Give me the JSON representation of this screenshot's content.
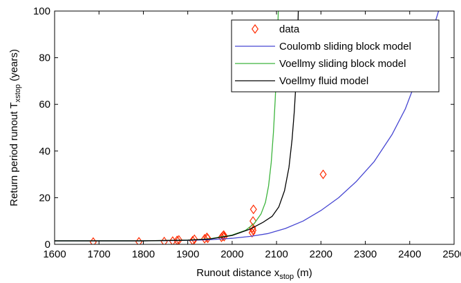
{
  "chart_data": {
    "type": "line",
    "xlabel": {
      "main": "Runout distance x",
      "sub": "stop",
      "suffix": " (m)"
    },
    "ylabel": {
      "main": "Return period runout T",
      "sub": "xstop",
      "suffix": " (years)"
    },
    "xlim": [
      1600,
      2500
    ],
    "ylim": [
      0,
      100
    ],
    "xticks": [
      1600,
      1700,
      1800,
      1900,
      2000,
      2100,
      2200,
      2300,
      2400,
      2500
    ],
    "yticks": [
      0,
      20,
      40,
      60,
      80,
      100
    ],
    "grid": false,
    "legend_position": "top-right",
    "series": [
      {
        "name": "data",
        "style": "marker",
        "marker": "diamond",
        "color": "#ff2a00",
        "points": [
          [
            1687,
            1.0
          ],
          [
            1790,
            1.1
          ],
          [
            1847,
            1.2
          ],
          [
            1866,
            1.4
          ],
          [
            1876,
            1.7
          ],
          [
            1880,
            1.9
          ],
          [
            1911,
            1.6
          ],
          [
            1915,
            2.2
          ],
          [
            1938,
            2.4
          ],
          [
            1943,
            3.0
          ],
          [
            1945,
            2.6
          ],
          [
            1976,
            3.0
          ],
          [
            1979,
            3.6
          ],
          [
            1981,
            4.0
          ],
          [
            1982,
            3.3
          ],
          [
            2045,
            5.0
          ],
          [
            2046,
            7.0
          ],
          [
            2047,
            6.0
          ],
          [
            2047,
            10.0
          ],
          [
            2048,
            15.0
          ],
          [
            2205,
            30.0
          ]
        ]
      },
      {
        "name": "Coulomb sliding block model",
        "style": "line",
        "color": "#4646d2",
        "points": [
          [
            1600,
            1.5
          ],
          [
            1800,
            1.5
          ],
          [
            1900,
            1.7
          ],
          [
            1950,
            2.0
          ],
          [
            2000,
            2.6
          ],
          [
            2040,
            3.4
          ],
          [
            2080,
            4.6
          ],
          [
            2120,
            6.8
          ],
          [
            2160,
            10.0
          ],
          [
            2200,
            14.5
          ],
          [
            2240,
            20.0
          ],
          [
            2280,
            27.0
          ],
          [
            2320,
            35.5
          ],
          [
            2360,
            47.0
          ],
          [
            2390,
            58.0
          ],
          [
            2410,
            68.0
          ],
          [
            2430,
            78.0
          ],
          [
            2445,
            88.0
          ],
          [
            2457,
            95.0
          ],
          [
            2465,
            100.0
          ]
        ]
      },
      {
        "name": "Voellmy sliding block model",
        "style": "line",
        "color": "#3cb43c",
        "points": [
          [
            1600,
            1.5
          ],
          [
            1800,
            1.5
          ],
          [
            1900,
            1.8
          ],
          [
            1950,
            2.4
          ],
          [
            2000,
            4.0
          ],
          [
            2030,
            6.0
          ],
          [
            2050,
            9.0
          ],
          [
            2065,
            13.0
          ],
          [
            2075,
            18.0
          ],
          [
            2082,
            25.0
          ],
          [
            2088,
            35.0
          ],
          [
            2093,
            48.0
          ],
          [
            2097,
            62.0
          ],
          [
            2100,
            75.0
          ],
          [
            2102,
            88.0
          ],
          [
            2104,
            100.0
          ]
        ]
      },
      {
        "name": "Voellmy fluid model",
        "style": "line",
        "color": "#000000",
        "points": [
          [
            1600,
            1.5
          ],
          [
            1800,
            1.5
          ],
          [
            1900,
            1.8
          ],
          [
            1950,
            2.3
          ],
          [
            2000,
            3.8
          ],
          [
            2040,
            6.5
          ],
          [
            2070,
            9.5
          ],
          [
            2090,
            12.0
          ],
          [
            2105,
            16.0
          ],
          [
            2118,
            23.0
          ],
          [
            2128,
            33.0
          ],
          [
            2135,
            45.0
          ],
          [
            2140,
            57.0
          ],
          [
            2144,
            70.0
          ],
          [
            2147,
            85.0
          ],
          [
            2149,
            100.0
          ]
        ]
      }
    ]
  }
}
